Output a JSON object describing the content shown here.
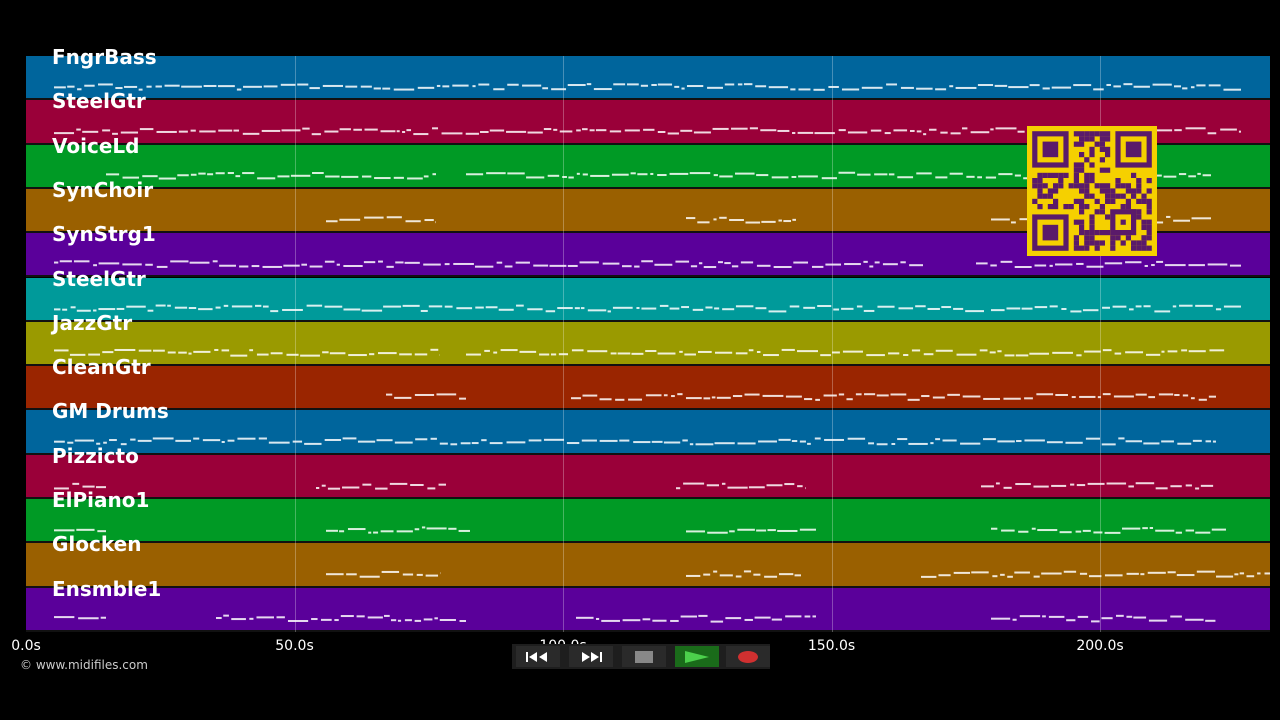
{
  "tracks": [
    {
      "label": "FngrBass",
      "color": "#00659c"
    },
    {
      "label": "SteelGtr",
      "color": "#9a0039"
    },
    {
      "label": "VoiceLd",
      "color": "#009a25"
    },
    {
      "label": "SynChoir",
      "color": "#9a6000"
    },
    {
      "label": "SynStrg1",
      "color": "#5a009a"
    },
    {
      "label": "SteelGtr",
      "color": "#009a9a"
    },
    {
      "label": "JazzGtr",
      "color": "#9a9a00"
    },
    {
      "label": "CleanGtr",
      "color": "#9a2500"
    },
    {
      "label": "GM Drums",
      "color": "#00659c"
    },
    {
      "label": "Pizzicto",
      "color": "#9a0039"
    },
    {
      "label": "ElPiano1",
      "color": "#009a25"
    },
    {
      "label": "Glocken",
      "color": "#9a6000"
    },
    {
      "label": "Ensmble1",
      "color": "#5a009a"
    }
  ],
  "timeline": {
    "ticks": [
      "0.0s",
      "50.0s",
      "100.0s",
      "150.0s",
      "200.0s"
    ],
    "duration_seconds": 231.5
  },
  "copyright": "© www.midifiles.com",
  "transport": {
    "rewind": "rewind-icon",
    "fast_forward": "fast-forward-icon",
    "stop": "stop-icon",
    "play": "play-icon",
    "record": "record-icon"
  },
  "colors": {
    "background": "#000000",
    "qr_background": "#f5d000",
    "qr_foreground": "#5a1a6a",
    "play_active": "#1a6b1a",
    "record": "#d03030"
  }
}
